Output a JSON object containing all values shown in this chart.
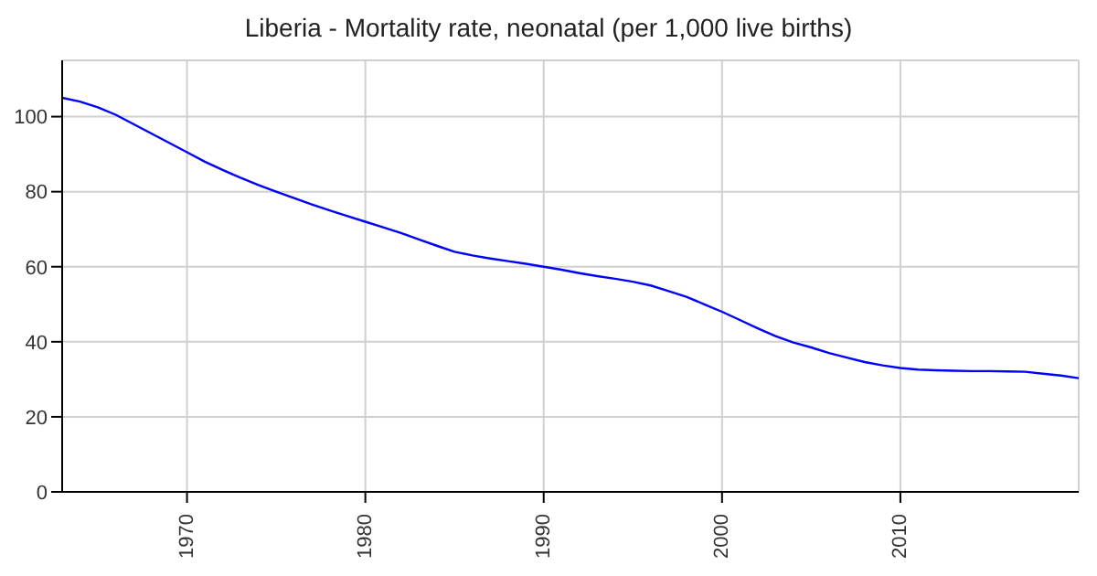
{
  "chart_data": {
    "type": "line",
    "title": "Liberia - Mortality rate, neonatal (per 1,000 live births)",
    "x": [
      1963,
      1964,
      1965,
      1966,
      1967,
      1968,
      1969,
      1970,
      1971,
      1972,
      1973,
      1974,
      1975,
      1976,
      1977,
      1978,
      1979,
      1980,
      1981,
      1982,
      1983,
      1984,
      1985,
      1986,
      1987,
      1988,
      1989,
      1990,
      1991,
      1992,
      1993,
      1994,
      1995,
      1996,
      1997,
      1998,
      1999,
      2000,
      2001,
      2002,
      2003,
      2004,
      2005,
      2006,
      2007,
      2008,
      2009,
      2010,
      2011,
      2012,
      2013,
      2014,
      2015,
      2016,
      2017,
      2018,
      2019,
      2020
    ],
    "series": [
      {
        "color": "#0000ff",
        "values": [
          105,
          104,
          102.5,
          100.5,
          98,
          95.5,
          93,
          90.5,
          88,
          85.8,
          83.7,
          81.8,
          80,
          78.3,
          76.6,
          75,
          73.5,
          72,
          70.5,
          69,
          67.3,
          65.6,
          64,
          63,
          62.2,
          61.5,
          60.8,
          60,
          59.2,
          58.3,
          57.5,
          56.8,
          56,
          55,
          53.5,
          52,
          50,
          48,
          45.8,
          43.6,
          41.5,
          39.8,
          38.5,
          37,
          35.8,
          34.6,
          33.7,
          33,
          32.6,
          32.4,
          32.3,
          32.2,
          32.2,
          32.1,
          32,
          31.5,
          31,
          30.3
        ]
      }
    ],
    "xlim": [
      1963,
      2020
    ],
    "xticks": [
      1970,
      1980,
      1990,
      2000,
      2010
    ],
    "ylim": [
      0,
      115
    ],
    "yticks": [
      0,
      20,
      40,
      60,
      80,
      100
    ],
    "grid": true,
    "legend": false,
    "marker": "none",
    "line_style": "solid"
  }
}
